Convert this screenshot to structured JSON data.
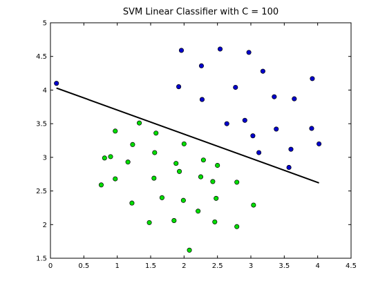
{
  "chart_data": {
    "type": "scatter",
    "title": "SVM Linear Classifier with C = 100",
    "xlabel": "",
    "ylabel": "",
    "xlim": [
      0,
      4.5
    ],
    "ylim": [
      1.5,
      5
    ],
    "x_ticks": [
      "0",
      "0.5",
      "1",
      "1.5",
      "2",
      "2.5",
      "3",
      "3.5",
      "4",
      "4.5"
    ],
    "y_ticks": [
      "1.5",
      "2",
      "2.5",
      "3",
      "3.5",
      "4",
      "4.5",
      "5"
    ],
    "grid": false,
    "series": [
      {
        "color": "#0000cc",
        "points": [
          [
            0.09,
            4.1
          ],
          [
            1.96,
            4.59
          ],
          [
            2.26,
            4.36
          ],
          [
            2.54,
            4.61
          ],
          [
            2.97,
            4.56
          ],
          [
            1.92,
            4.05
          ],
          [
            2.27,
            3.86
          ],
          [
            2.77,
            4.04
          ],
          [
            3.18,
            4.28
          ],
          [
            3.35,
            3.9
          ],
          [
            3.65,
            3.87
          ],
          [
            3.92,
            4.17
          ],
          [
            2.64,
            3.5
          ],
          [
            2.91,
            3.55
          ],
          [
            3.03,
            3.32
          ],
          [
            3.38,
            3.42
          ],
          [
            3.91,
            3.43
          ],
          [
            4.02,
            3.2
          ],
          [
            3.6,
            3.12
          ],
          [
            3.12,
            3.07
          ],
          [
            3.57,
            2.85
          ]
        ]
      },
      {
        "color": "#00dd00",
        "points": [
          [
            0.97,
            3.39
          ],
          [
            1.33,
            3.51
          ],
          [
            1.58,
            3.36
          ],
          [
            1.23,
            3.19
          ],
          [
            2.0,
            3.2
          ],
          [
            0.81,
            2.99
          ],
          [
            0.9,
            3.01
          ],
          [
            1.16,
            2.93
          ],
          [
            1.56,
            3.07
          ],
          [
            1.88,
            2.91
          ],
          [
            2.29,
            2.96
          ],
          [
            1.93,
            2.79
          ],
          [
            2.5,
            2.88
          ],
          [
            0.76,
            2.59
          ],
          [
            0.97,
            2.68
          ],
          [
            1.55,
            2.69
          ],
          [
            2.25,
            2.71
          ],
          [
            2.43,
            2.64
          ],
          [
            2.79,
            2.63
          ],
          [
            1.67,
            2.4
          ],
          [
            1.22,
            2.32
          ],
          [
            1.99,
            2.36
          ],
          [
            2.48,
            2.39
          ],
          [
            3.04,
            2.29
          ],
          [
            2.21,
            2.2
          ],
          [
            1.48,
            2.03
          ],
          [
            1.85,
            2.06
          ],
          [
            2.46,
            2.04
          ],
          [
            2.79,
            1.97
          ],
          [
            2.08,
            1.62
          ]
        ]
      }
    ],
    "decision_boundary": {
      "color": "#000000",
      "x": [
        0.09,
        4.02
      ],
      "y": [
        4.03,
        2.62
      ]
    }
  }
}
